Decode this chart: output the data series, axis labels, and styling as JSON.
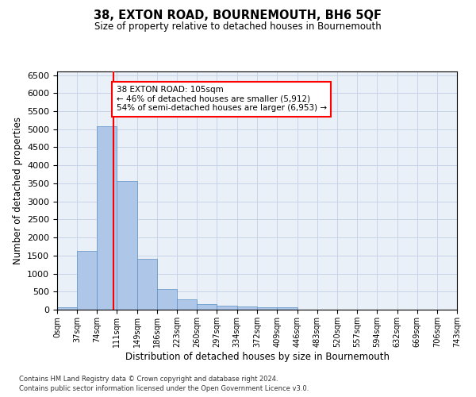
{
  "title": "38, EXTON ROAD, BOURNEMOUTH, BH6 5QF",
  "subtitle": "Size of property relative to detached houses in Bournemouth",
  "xlabel": "Distribution of detached houses by size in Bournemouth",
  "ylabel": "Number of detached properties",
  "bar_color": "#aec6e8",
  "bar_edge_color": "#5a8fc2",
  "background_color": "#ffffff",
  "grid_color": "#c8d4e8",
  "vline_x": 105,
  "vline_color": "red",
  "annotation_text": "38 EXTON ROAD: 105sqm\n← 46% of detached houses are smaller (5,912)\n54% of semi-detached houses are larger (6,953) →",
  "annotation_box_color": "white",
  "annotation_box_edge": "red",
  "footnote1": "Contains HM Land Registry data © Crown copyright and database right 2024.",
  "footnote2": "Contains public sector information licensed under the Open Government Licence v3.0.",
  "bin_edges": [
    0,
    37,
    74,
    111,
    149,
    186,
    223,
    260,
    297,
    334,
    372,
    409,
    446,
    483,
    520,
    557,
    594,
    632,
    669,
    706,
    743
  ],
  "bar_heights": [
    75,
    1625,
    5075,
    3575,
    1400,
    575,
    290,
    145,
    110,
    80,
    60,
    75,
    0,
    0,
    0,
    0,
    0,
    0,
    0,
    0
  ],
  "ylim": [
    0,
    6600
  ],
  "yticks": [
    0,
    500,
    1000,
    1500,
    2000,
    2500,
    3000,
    3500,
    4000,
    4500,
    5000,
    5500,
    6000,
    6500
  ],
  "tick_labels": [
    "0sqm",
    "37sqm",
    "74sqm",
    "111sqm",
    "149sqm",
    "186sqm",
    "223sqm",
    "260sqm",
    "297sqm",
    "334sqm",
    "372sqm",
    "409sqm",
    "446sqm",
    "483sqm",
    "520sqm",
    "557sqm",
    "594sqm",
    "632sqm",
    "669sqm",
    "706sqm",
    "743sqm"
  ]
}
